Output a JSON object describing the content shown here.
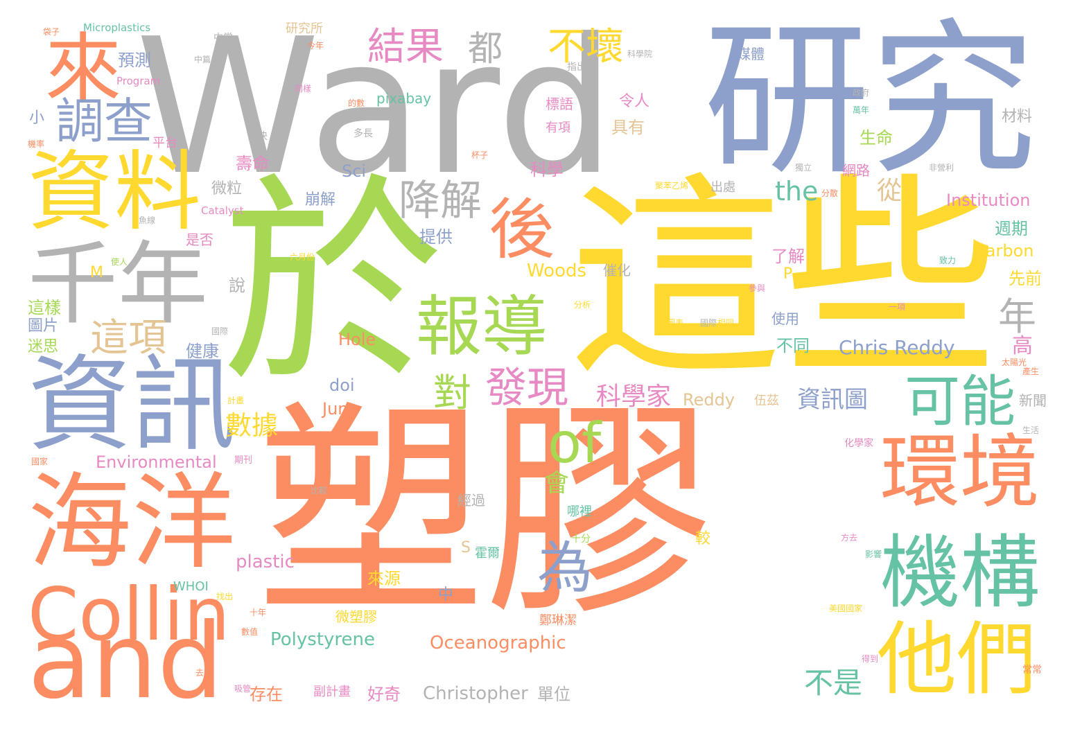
{
  "palette": {
    "orange": "#fc8d62",
    "gray": "#b3b3b3",
    "blue": "#8da0cb",
    "green": "#a6d854",
    "yellow": "#ffd92f",
    "pink": "#e78ac3",
    "teal": "#66c2a5",
    "tan": "#e5c494"
  },
  "words": [
    {
      "text": "塑膠",
      "color": "orange"
    },
    {
      "text": "Ward",
      "color": "gray"
    },
    {
      "text": "於",
      "color": "green"
    },
    {
      "text": "這些",
      "color": "yellow"
    },
    {
      "text": "研究",
      "color": "blue"
    },
    {
      "text": "資訊",
      "color": "blue"
    },
    {
      "text": "海洋",
      "color": "orange"
    },
    {
      "text": "and",
      "color": "orange"
    },
    {
      "text": "Collin",
      "color": "orange"
    },
    {
      "text": "千年",
      "color": "gray"
    },
    {
      "text": "資料",
      "color": "yellow"
    },
    {
      "text": "來",
      "color": "orange"
    },
    {
      "text": "調查",
      "color": "blue"
    },
    {
      "text": "機構",
      "color": "teal"
    },
    {
      "text": "環境",
      "color": "orange"
    },
    {
      "text": "他們",
      "color": "yellow"
    },
    {
      "text": "報導",
      "color": "green"
    },
    {
      "text": "後",
      "color": "orange"
    },
    {
      "text": "可能",
      "color": "teal"
    },
    {
      "text": "結果",
      "color": "pink"
    },
    {
      "text": "不壞",
      "color": "yellow"
    },
    {
      "text": "降解",
      "color": "gray"
    },
    {
      "text": "都",
      "color": "gray"
    },
    {
      "text": "這項",
      "color": "tan"
    },
    {
      "text": "發現",
      "color": "pink"
    },
    {
      "text": "對",
      "color": "green"
    },
    {
      "text": "為",
      "color": "blue"
    },
    {
      "text": "of",
      "color": "green"
    },
    {
      "text": "年",
      "color": "gray"
    },
    {
      "text": "科學家",
      "color": "pink"
    },
    {
      "text": "資訊圖",
      "color": "blue"
    },
    {
      "text": "數據",
      "color": "yellow"
    },
    {
      "text": "不是",
      "color": "teal"
    },
    {
      "text": "會",
      "color": "green"
    },
    {
      "text": "Chris Reddy",
      "color": "blue"
    },
    {
      "text": "Institution",
      "color": "pink"
    },
    {
      "text": "Oceanographic",
      "color": "orange"
    },
    {
      "text": "Polystyrene",
      "color": "teal"
    },
    {
      "text": "Christopher",
      "color": "gray"
    },
    {
      "text": "Environmental",
      "color": "pink"
    },
    {
      "text": "Woods",
      "color": "yellow"
    },
    {
      "text": "Carbon",
      "color": "yellow"
    },
    {
      "text": "Reddy",
      "color": "tan"
    },
    {
      "text": "plastic",
      "color": "pink"
    },
    {
      "text": "Hole",
      "color": "orange"
    },
    {
      "text": "June",
      "color": "orange"
    },
    {
      "text": "doi",
      "color": "blue"
    },
    {
      "text": "the",
      "color": "teal"
    },
    {
      "text": "Sci",
      "color": "blue"
    },
    {
      "text": "pixabay",
      "color": "teal"
    },
    {
      "text": "Microplastics",
      "color": "teal"
    },
    {
      "text": "Program",
      "color": "pink"
    },
    {
      "text": "Catalyst",
      "color": "pink"
    },
    {
      "text": "WHOI",
      "color": "teal"
    },
    {
      "text": "M",
      "color": "yellow"
    },
    {
      "text": "P",
      "color": "yellow"
    },
    {
      "text": "S",
      "color": "tan"
    },
    {
      "text": "預測",
      "color": "blue"
    },
    {
      "text": "小",
      "color": "blue"
    },
    {
      "text": "平台",
      "color": "pink"
    },
    {
      "text": "生命",
      "color": "green"
    },
    {
      "text": "具有",
      "color": "tan"
    },
    {
      "text": "令人",
      "color": "pink"
    },
    {
      "text": "標語",
      "color": "pink"
    },
    {
      "text": "有項",
      "color": "pink"
    },
    {
      "text": "科學",
      "color": "pink"
    },
    {
      "text": "壽命",
      "color": "pink"
    },
    {
      "text": "微粒",
      "color": "gray"
    },
    {
      "text": "崩解",
      "color": "blue"
    },
    {
      "text": "提供",
      "color": "blue"
    },
    {
      "text": "健康",
      "color": "blue"
    },
    {
      "text": "說",
      "color": "gray"
    },
    {
      "text": "這樣",
      "color": "green"
    },
    {
      "text": "圖片",
      "color": "blue"
    },
    {
      "text": "迷思",
      "color": "green"
    },
    {
      "text": "從",
      "color": "tan"
    },
    {
      "text": "週期",
      "color": "teal"
    },
    {
      "text": "先前",
      "color": "yellow"
    },
    {
      "text": "了解",
      "color": "pink"
    },
    {
      "text": "使用",
      "color": "blue"
    },
    {
      "text": "不同",
      "color": "teal"
    },
    {
      "text": "高",
      "color": "pink"
    },
    {
      "text": "新聞",
      "color": "gray"
    },
    {
      "text": "材料",
      "color": "gray"
    },
    {
      "text": "網路",
      "color": "pink"
    },
    {
      "text": "媒體",
      "color": "blue"
    },
    {
      "text": "出處",
      "color": "gray"
    },
    {
      "text": "是否",
      "color": "pink"
    },
    {
      "text": "研究所",
      "color": "tan"
    },
    {
      "text": "中常",
      "color": "gray"
    },
    {
      "text": "中篇",
      "color": "gray"
    },
    {
      "text": "指出",
      "color": "gray"
    },
    {
      "text": "來源",
      "color": "yellow"
    },
    {
      "text": "微塑膠",
      "color": "yellow"
    },
    {
      "text": "中",
      "color": "blue"
    },
    {
      "text": "經過",
      "color": "gray"
    },
    {
      "text": "哪裡",
      "color": "teal"
    },
    {
      "text": "十分",
      "color": "green"
    },
    {
      "text": "較",
      "color": "yellow"
    },
    {
      "text": "霍爾",
      "color": "teal"
    },
    {
      "text": "伍茲",
      "color": "tan"
    },
    {
      "text": "存在",
      "color": "orange"
    },
    {
      "text": "好奇",
      "color": "pink"
    },
    {
      "text": "單位",
      "color": "gray"
    },
    {
      "text": "副計畫",
      "color": "pink"
    },
    {
      "text": "鄭琳潔",
      "color": "orange"
    },
    {
      "text": "十年",
      "color": "orange"
    },
    {
      "text": "數值",
      "color": "orange"
    },
    {
      "text": "去年",
      "color": "orange"
    },
    {
      "text": "吸管",
      "color": "pink"
    },
    {
      "text": "找出",
      "color": "yellow"
    },
    {
      "text": "比較",
      "color": "gray"
    },
    {
      "text": "期刊",
      "color": "pink"
    },
    {
      "text": "國家",
      "color": "orange"
    },
    {
      "text": "計畫",
      "color": "yellow"
    },
    {
      "text": "化學家",
      "color": "pink"
    },
    {
      "text": "美國國家",
      "color": "yellow"
    },
    {
      "text": "方去",
      "color": "pink"
    },
    {
      "text": "影響",
      "color": "teal"
    },
    {
      "text": "得到",
      "color": "pink"
    },
    {
      "text": "常常",
      "color": "orange"
    },
    {
      "text": "生活",
      "color": "gray"
    },
    {
      "text": "太陽光",
      "color": "orange"
    },
    {
      "text": "產生",
      "color": "orange"
    },
    {
      "text": "催化",
      "color": "gray"
    },
    {
      "text": "分析",
      "color": "yellow"
    },
    {
      "text": "國際",
      "color": "gray"
    },
    {
      "text": "解決",
      "color": "gray"
    },
    {
      "text": "多長",
      "color": "gray"
    },
    {
      "text": "杯子",
      "color": "orange"
    },
    {
      "text": "的數",
      "color": "orange"
    },
    {
      "text": "同樣",
      "color": "pink"
    },
    {
      "text": "今年",
      "color": "orange"
    },
    {
      "text": "袋子",
      "color": "orange"
    },
    {
      "text": "機率",
      "color": "orange"
    },
    {
      "text": "魚線",
      "color": "gray"
    },
    {
      "text": "使人",
      "color": "green"
    },
    {
      "text": "六月份",
      "color": "yellow"
    },
    {
      "text": "一項",
      "color": "pink"
    },
    {
      "text": "參與",
      "color": "pink"
    },
    {
      "text": "致力",
      "color": "teal"
    },
    {
      "text": "非營利",
      "color": "gray"
    },
    {
      "text": "獨立",
      "color": "gray"
    },
    {
      "text": "分散",
      "color": "orange"
    },
    {
      "text": "政府",
      "color": "gray"
    },
    {
      "text": "萬年",
      "color": "teal"
    },
    {
      "text": "國際",
      "color": "gray"
    },
    {
      "text": "相同",
      "color": "yellow"
    },
    {
      "text": "圖表",
      "color": "yellow"
    },
    {
      "text": "聚苯乙烯",
      "color": "yellow"
    },
    {
      "text": "科學院",
      "color": "gray"
    }
  ]
}
